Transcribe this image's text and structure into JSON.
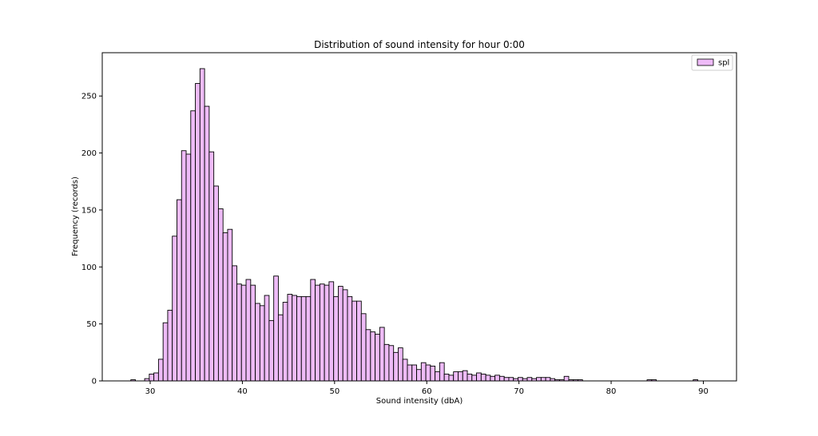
{
  "chart_data": {
    "type": "bar",
    "title": "Distribution of sound intensity for hour 0:00",
    "xlabel": "Sound intensity (dbA)",
    "ylabel": "Frequency (records)",
    "xlim": [
      24.8,
      93.6
    ],
    "ylim": [
      0,
      288
    ],
    "x_ticks": [
      30,
      40,
      50,
      60,
      70,
      80,
      90
    ],
    "y_ticks": [
      0,
      50,
      100,
      150,
      200,
      250
    ],
    "grid": false,
    "legend": {
      "placement": "top-right",
      "entries": [
        {
          "name": "spl",
          "color": "#eebbf7"
        }
      ]
    },
    "series": [
      {
        "name": "spl",
        "bin_start": 27.9,
        "bin_width": 0.5,
        "values": [
          1,
          0,
          0,
          2,
          6,
          7,
          19,
          51,
          62,
          127,
          159,
          202,
          199,
          237,
          261,
          274,
          241,
          201,
          171,
          151,
          130,
          133,
          101,
          85,
          84,
          89,
          84,
          68,
          66,
          75,
          53,
          92,
          58,
          69,
          76,
          75,
          74,
          74,
          74,
          89,
          84,
          85,
          84,
          87,
          74,
          83,
          80,
          74,
          70,
          70,
          59,
          45,
          43,
          41,
          47,
          32,
          31,
          25,
          29,
          19,
          14,
          14,
          10,
          16,
          14,
          13,
          8,
          16,
          6,
          5,
          8,
          8,
          9,
          6,
          5,
          7,
          6,
          5,
          4,
          5,
          4,
          3,
          3,
          2,
          3,
          2,
          3,
          2,
          3,
          3,
          3,
          2,
          1,
          1,
          4,
          1,
          1,
          1,
          0,
          0,
          0,
          0,
          0,
          0,
          0,
          0,
          0,
          0,
          0,
          0,
          0,
          0,
          1,
          1,
          0,
          0,
          0,
          0,
          0,
          0,
          0,
          0,
          1,
          0,
          0,
          0
        ]
      }
    ]
  }
}
